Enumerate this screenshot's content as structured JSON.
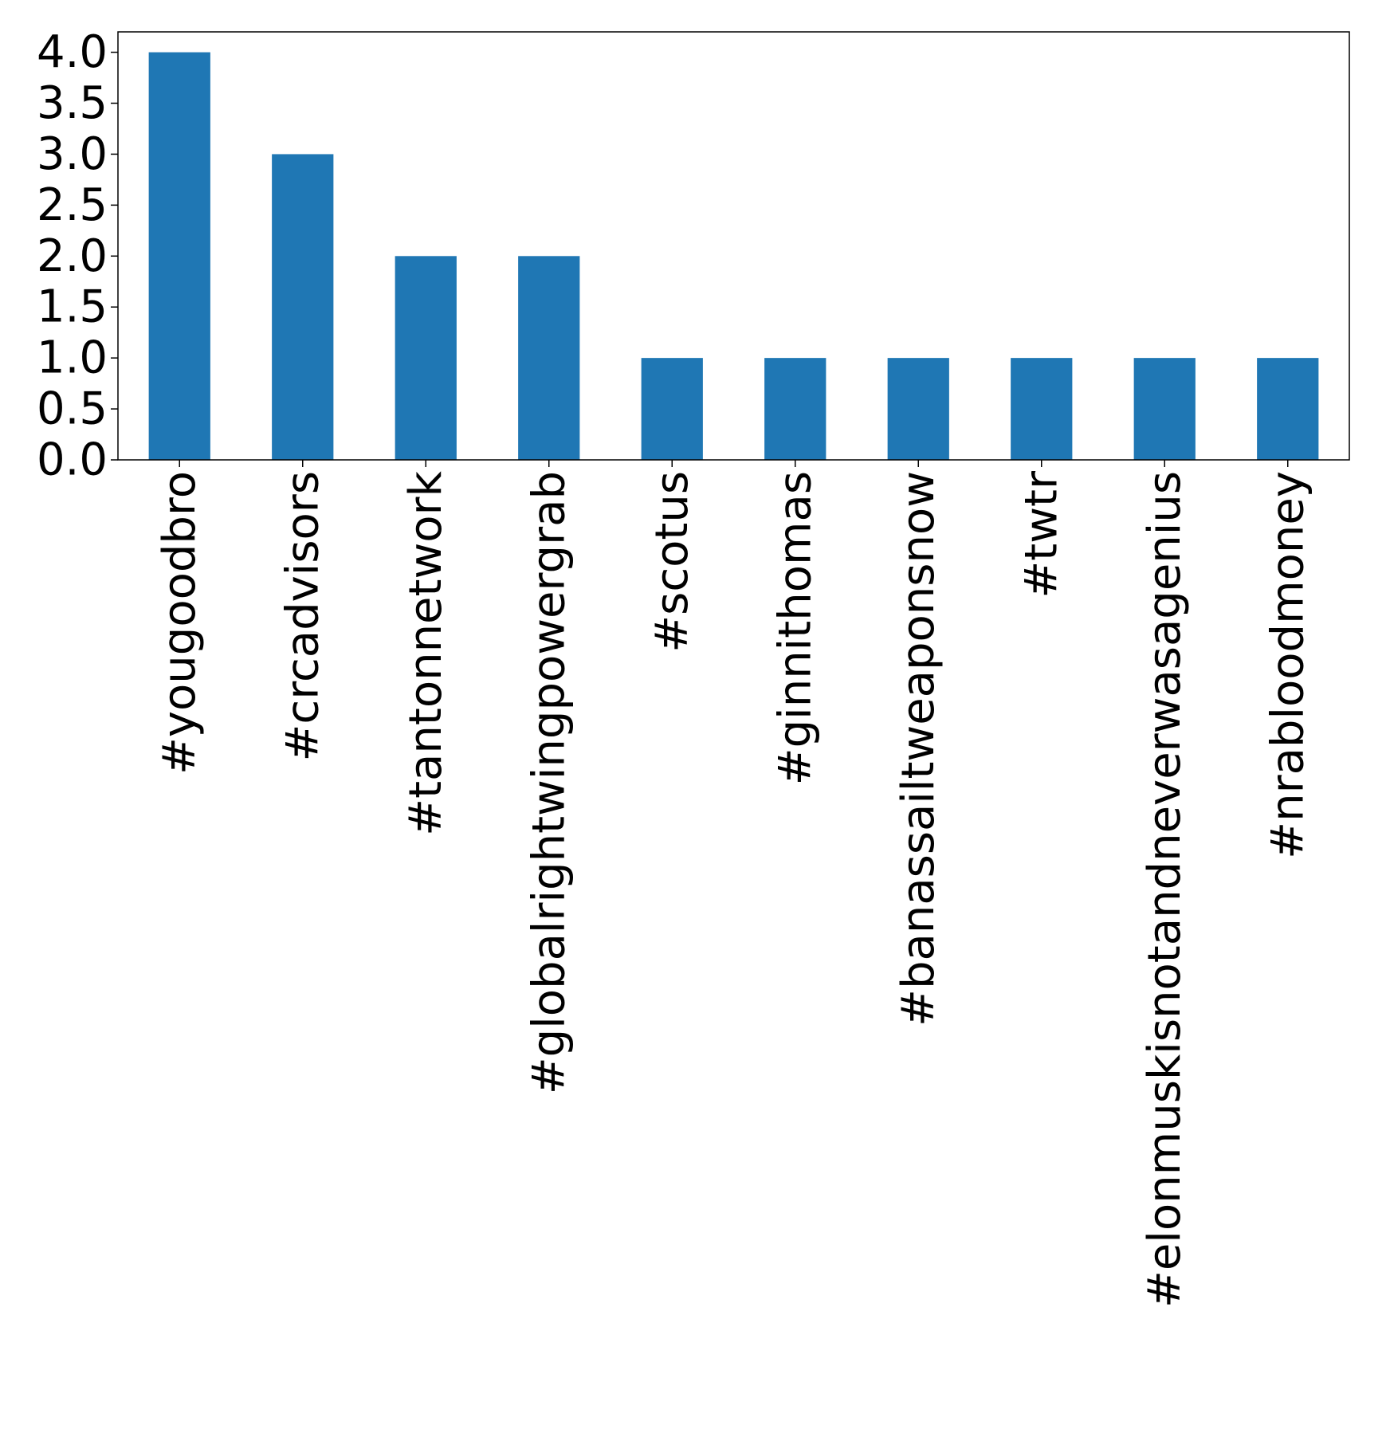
{
  "chart_data": {
    "type": "bar",
    "title": "",
    "xlabel": "",
    "ylabel": "",
    "categories": [
      "#yougoodbro",
      "#crcadvisors",
      "#tantonnetwork",
      "#globalrightwingpowergrab",
      "#scotus",
      "#ginnithomas",
      "#banassailtweaponsnow",
      "#twtr",
      "#elonmuskisnotandneverwasagenius",
      "#nrabloodmoney"
    ],
    "values": [
      4,
      3,
      2,
      2,
      1,
      1,
      1,
      1,
      1,
      1
    ],
    "ylim": [
      0,
      4.2
    ],
    "yticks": [
      {
        "value": 0.0,
        "label": "0.0"
      },
      {
        "value": 0.5,
        "label": "0.5"
      },
      {
        "value": 1.0,
        "label": "1.0"
      },
      {
        "value": 1.5,
        "label": "1.5"
      },
      {
        "value": 2.0,
        "label": "2.0"
      },
      {
        "value": 2.5,
        "label": "2.5"
      },
      {
        "value": 3.0,
        "label": "3.0"
      },
      {
        "value": 3.5,
        "label": "3.5"
      },
      {
        "value": 4.0,
        "label": "4.0"
      }
    ],
    "bar_color": "#1f77b4",
    "grid": false,
    "legend": "none"
  }
}
